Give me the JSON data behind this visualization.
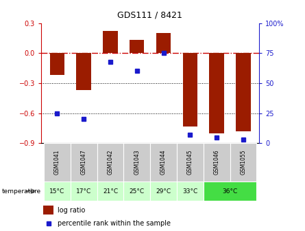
{
  "title": "GDS111 / 8421",
  "samples": [
    "GSM1041",
    "GSM1047",
    "GSM1042",
    "GSM1043",
    "GSM1044",
    "GSM1045",
    "GSM1046",
    "GSM1055"
  ],
  "temperatures": [
    "15°C",
    "17°C",
    "21°C",
    "25°C",
    "29°C",
    "33°C",
    "36°C"
  ],
  "temp_groups": [
    1,
    1,
    1,
    1,
    1,
    1,
    2
  ],
  "temp_spans": [
    1,
    1,
    1,
    1,
    1,
    1,
    2
  ],
  "log_ratios": [
    -0.22,
    -0.37,
    0.22,
    0.13,
    0.2,
    -0.73,
    -0.8,
    -0.78
  ],
  "percentile_ranks": [
    25,
    20,
    68,
    60,
    75,
    7,
    5,
    3
  ],
  "ylim_left": [
    -0.9,
    0.3
  ],
  "ylim_right": [
    0,
    100
  ],
  "yticks_left": [
    -0.9,
    -0.6,
    -0.3,
    0.0,
    0.3
  ],
  "yticks_right": [
    0,
    25,
    50,
    75,
    100
  ],
  "bar_color": "#9B1C00",
  "dot_color": "#1A1ACC",
  "hline_color": "#CC0000",
  "grid_color": "#000000",
  "bg_color": "#FFFFFF",
  "temp_bg_light": "#CCFFCC",
  "temp_bg_dark": "#44DD44",
  "label_bg": "#CCCCCC",
  "bar_width": 0.55
}
